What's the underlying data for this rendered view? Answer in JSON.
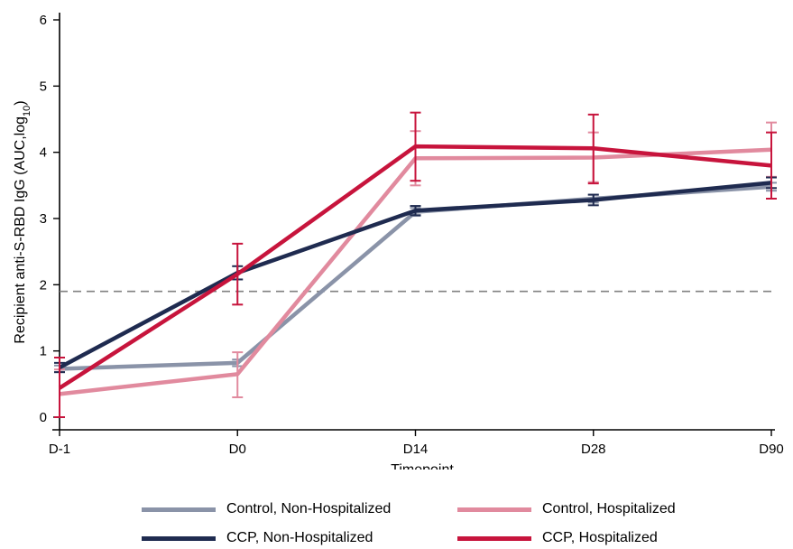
{
  "chart_data": {
    "type": "line",
    "title": "",
    "xlabel": "Timepoint",
    "ylabel_main": "Recipient anti-S-RBD IgG (AUC,log",
    "ylabel_sub": "10",
    "ylabel_end": ")",
    "categories": [
      "D-1",
      "D0",
      "D14",
      "D28",
      "D90"
    ],
    "yticks": [
      "0",
      "1",
      "2",
      "3",
      "4",
      "5",
      "6"
    ],
    "ylim": [
      0,
      6
    ],
    "reference_line": {
      "y": 1.9,
      "style": "dashed",
      "color": "#808080"
    },
    "series": [
      {
        "name": "Control, Non-Hospitalized",
        "color": "#8a93a8",
        "values": [
          0.73,
          0.82,
          3.1,
          3.3,
          3.48
        ],
        "lower": [
          0.68,
          0.77,
          3.04,
          3.24,
          3.42
        ],
        "upper": [
          0.78,
          0.87,
          3.16,
          3.36,
          3.54
        ]
      },
      {
        "name": "Control, Hospitalized",
        "color": "#e18a9e",
        "values": [
          0.35,
          0.65,
          3.91,
          3.92,
          4.04
        ],
        "lower": [
          0.0,
          0.3,
          3.5,
          3.55,
          3.63
        ],
        "upper": [
          0.72,
          0.98,
          4.32,
          4.3,
          4.45
        ]
      },
      {
        "name": "CCP, Non-Hospitalized",
        "color": "#1f2b50",
        "values": [
          0.75,
          2.18,
          3.12,
          3.28,
          3.54
        ],
        "lower": [
          0.68,
          2.08,
          3.05,
          3.2,
          3.46
        ],
        "upper": [
          0.82,
          2.28,
          3.19,
          3.36,
          3.62
        ]
      },
      {
        "name": "CCP, Hospitalized",
        "color": "#c7143c",
        "values": [
          0.44,
          2.16,
          4.09,
          4.06,
          3.8
        ],
        "lower": [
          0.0,
          1.7,
          3.57,
          3.53,
          3.3
        ],
        "upper": [
          0.9,
          2.62,
          4.6,
          4.57,
          4.3
        ]
      }
    ],
    "legend_position": "bottom",
    "grid": false
  }
}
